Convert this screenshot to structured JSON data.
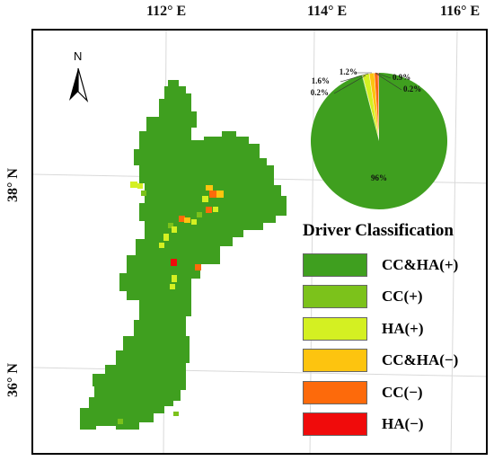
{
  "longitude_labels": [
    "112° E",
    "114° E",
    "116° E"
  ],
  "latitude_labels": [
    "38° N",
    "36° N"
  ],
  "north_arrow": {
    "label": "N",
    "icon": "north-arrow-icon"
  },
  "legend": {
    "title": "Driver Classification",
    "items": [
      {
        "label": "CC&HA(+)",
        "color": "#3f9f1f"
      },
      {
        "label": "CC(+)",
        "color": "#7cc21b"
      },
      {
        "label": "HA(+)",
        "color": "#d4f022"
      },
      {
        "label": "CC&HA(−)",
        "color": "#fdc40f"
      },
      {
        "label": "CC(−)",
        "color": "#fd6a0b"
      },
      {
        "label": "HA(−)",
        "color": "#f00b0b"
      }
    ]
  },
  "chart_data": {
    "type": "pie",
    "categories": [
      "CC&HA(+)",
      "CC(+)",
      "HA(+)",
      "CC&HA(−)",
      "CC(−)",
      "HA(−)"
    ],
    "values": [
      96,
      0.2,
      1.6,
      1.2,
      0.9,
      0.2
    ],
    "labels": [
      "96%",
      "0.2%",
      "1.6%",
      "1.2%",
      "0.9%",
      "0.2%"
    ],
    "colors": [
      "#3f9f1f",
      "#7cc21b",
      "#d4f022",
      "#fdc40f",
      "#fd6a0b",
      "#f00b0b"
    ]
  }
}
